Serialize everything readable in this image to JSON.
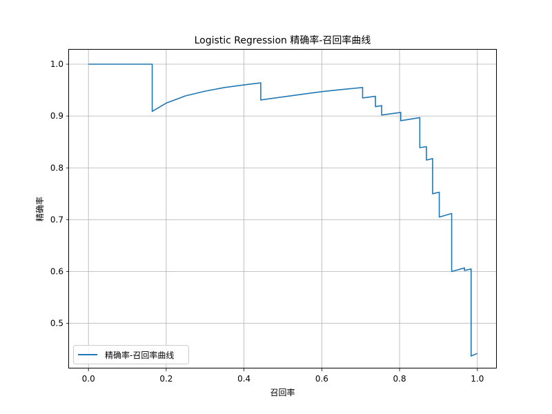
{
  "chart_data": {
    "type": "line",
    "title": "Logistic Regression 精确率-召回率曲线",
    "xlabel": "召回率",
    "ylabel": "精确率",
    "xlim": [
      -0.05,
      1.05
    ],
    "ylim": [
      0.413,
      1.028
    ],
    "xticks": [
      "0.0",
      "0.2",
      "0.4",
      "0.6",
      "0.8",
      "1.0"
    ],
    "yticks": [
      "0.5",
      "0.6",
      "0.7",
      "0.8",
      "0.9",
      "1.0"
    ],
    "grid": true,
    "legend_position": "lower-left",
    "series": [
      {
        "name": "精确率-召回率曲线",
        "color": "#1f77b4",
        "x": [
          0.0,
          0.164,
          0.164,
          0.2,
          0.25,
          0.3,
          0.35,
          0.4,
          0.443,
          0.443,
          0.5,
          0.55,
          0.6,
          0.65,
          0.705,
          0.705,
          0.738,
          0.738,
          0.754,
          0.754,
          0.803,
          0.803,
          0.852,
          0.852,
          0.869,
          0.869,
          0.885,
          0.885,
          0.902,
          0.902,
          0.934,
          0.934,
          0.967,
          0.967,
          0.984,
          0.984,
          1.0
        ],
        "y": [
          1.0,
          1.0,
          0.909,
          0.925,
          0.939,
          0.948,
          0.955,
          0.96,
          0.964,
          0.931,
          0.937,
          0.942,
          0.947,
          0.951,
          0.955,
          0.935,
          0.938,
          0.918,
          0.92,
          0.902,
          0.907,
          0.891,
          0.897,
          0.839,
          0.841,
          0.815,
          0.818,
          0.75,
          0.753,
          0.705,
          0.712,
          0.6,
          0.607,
          0.602,
          0.605,
          0.437,
          0.442
        ]
      }
    ]
  }
}
